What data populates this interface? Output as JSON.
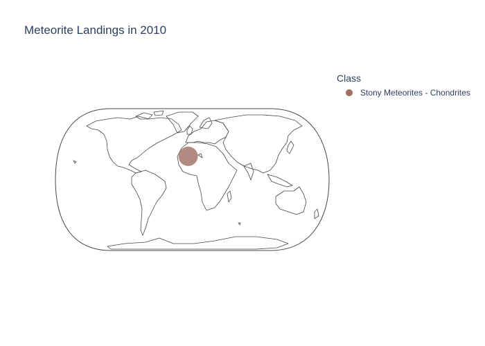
{
  "title": "Meteorite Landings in 2010",
  "legend": {
    "title": "Class",
    "items": [
      {
        "label": "Stony Meteorites - Chondrites",
        "color": "#a16e63"
      }
    ]
  },
  "map": {
    "projection": "natural-earth",
    "coastline_color": "#444444",
    "points": [
      {
        "class": "Stony Meteorites - Chondrites",
        "lon": -5.5,
        "lat": 29.5,
        "color": "#a16e63",
        "opacity": 0.8
      }
    ]
  }
}
